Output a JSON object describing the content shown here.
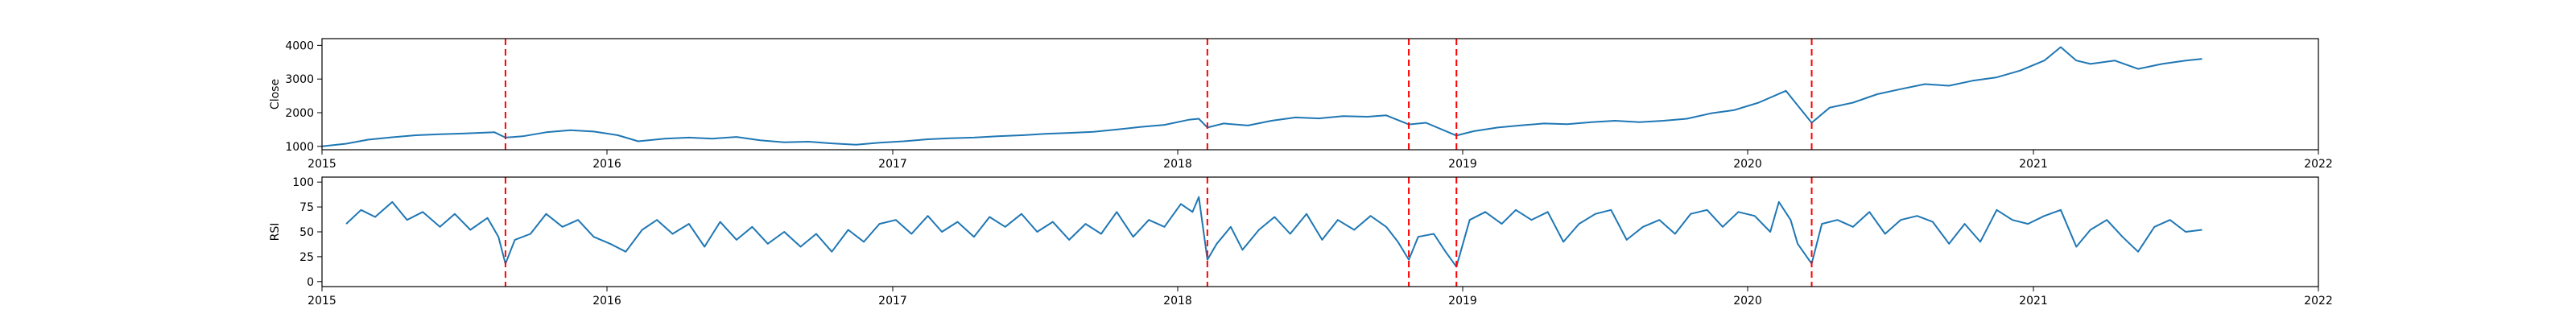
{
  "colors": {
    "series": "#1f77b4",
    "event": "#ff0000",
    "frame": "#000000"
  },
  "chart_data": [
    {
      "type": "line",
      "title": "",
      "xlabel": "",
      "ylabel": "Close",
      "xlim": [
        "2015-01-01",
        "2022-01-01"
      ],
      "ylim": [
        900,
        4200
      ],
      "x_ticks": [
        "2015",
        "2016",
        "2017",
        "2018",
        "2019",
        "2020",
        "2021",
        "2022"
      ],
      "y_ticks": [
        1000,
        2000,
        3000,
        4000
      ],
      "event_lines": [
        "2015-08-24",
        "2018-02-08",
        "2018-10-24",
        "2018-12-24",
        "2020-03-23"
      ],
      "series": [
        {
          "points": [
            [
              "2015-01-01",
              1000
            ],
            [
              "2015-02-01",
              1080
            ],
            [
              "2015-03-01",
              1200
            ],
            [
              "2015-04-01",
              1270
            ],
            [
              "2015-05-01",
              1330
            ],
            [
              "2015-06-01",
              1360
            ],
            [
              "2015-07-01",
              1380
            ],
            [
              "2015-08-10",
              1420
            ],
            [
              "2015-08-24",
              1260
            ],
            [
              "2015-09-15",
              1300
            ],
            [
              "2015-10-15",
              1420
            ],
            [
              "2015-11-15",
              1480
            ],
            [
              "2015-12-15",
              1440
            ],
            [
              "2016-01-15",
              1330
            ],
            [
              "2016-02-10",
              1150
            ],
            [
              "2016-03-15",
              1230
            ],
            [
              "2016-04-15",
              1260
            ],
            [
              "2016-05-15",
              1230
            ],
            [
              "2016-06-15",
              1280
            ],
            [
              "2016-07-15",
              1180
            ],
            [
              "2016-08-15",
              1120
            ],
            [
              "2016-09-15",
              1140
            ],
            [
              "2016-10-15",
              1090
            ],
            [
              "2016-11-15",
              1050
            ],
            [
              "2016-12-15",
              1110
            ],
            [
              "2017-01-15",
              1150
            ],
            [
              "2017-02-15",
              1210
            ],
            [
              "2017-03-15",
              1240
            ],
            [
              "2017-04-15",
              1260
            ],
            [
              "2017-05-15",
              1300
            ],
            [
              "2017-06-15",
              1330
            ],
            [
              "2017-07-15",
              1370
            ],
            [
              "2017-08-15",
              1400
            ],
            [
              "2017-09-15",
              1430
            ],
            [
              "2017-10-15",
              1500
            ],
            [
              "2017-11-15",
              1580
            ],
            [
              "2017-12-15",
              1640
            ],
            [
              "2018-01-15",
              1790
            ],
            [
              "2018-01-28",
              1820
            ],
            [
              "2018-02-08",
              1560
            ],
            [
              "2018-03-01",
              1680
            ],
            [
              "2018-04-01",
              1620
            ],
            [
              "2018-05-01",
              1760
            ],
            [
              "2018-06-01",
              1860
            ],
            [
              "2018-07-01",
              1830
            ],
            [
              "2018-08-01",
              1900
            ],
            [
              "2018-09-01",
              1880
            ],
            [
              "2018-09-25",
              1920
            ],
            [
              "2018-10-24",
              1650
            ],
            [
              "2018-11-15",
              1700
            ],
            [
              "2018-12-24",
              1320
            ],
            [
              "2019-01-15",
              1450
            ],
            [
              "2019-02-15",
              1560
            ],
            [
              "2019-03-15",
              1620
            ],
            [
              "2019-04-15",
              1680
            ],
            [
              "2019-05-15",
              1660
            ],
            [
              "2019-06-15",
              1720
            ],
            [
              "2019-07-15",
              1760
            ],
            [
              "2019-08-15",
              1720
            ],
            [
              "2019-09-15",
              1760
            ],
            [
              "2019-10-15",
              1820
            ],
            [
              "2019-11-15",
              1980
            ],
            [
              "2019-12-15",
              2080
            ],
            [
              "2020-01-15",
              2300
            ],
            [
              "2020-02-19",
              2650
            ],
            [
              "2020-03-23",
              1700
            ],
            [
              "2020-04-15",
              2150
            ],
            [
              "2020-05-15",
              2300
            ],
            [
              "2020-06-15",
              2550
            ],
            [
              "2020-07-15",
              2700
            ],
            [
              "2020-08-15",
              2850
            ],
            [
              "2020-09-15",
              2800
            ],
            [
              "2020-10-15",
              2950
            ],
            [
              "2020-11-15",
              3050
            ],
            [
              "2020-12-15",
              3250
            ],
            [
              "2021-01-15",
              3550
            ],
            [
              "2021-02-05",
              3950
            ],
            [
              "2021-02-25",
              3550
            ],
            [
              "2021-03-15",
              3450
            ],
            [
              "2021-04-15",
              3550
            ],
            [
              "2021-05-15",
              3300
            ],
            [
              "2021-06-15",
              3450
            ],
            [
              "2021-07-15",
              3550
            ],
            [
              "2021-08-05",
              3600
            ]
          ]
        }
      ]
    },
    {
      "type": "line",
      "title": "",
      "xlabel": "",
      "ylabel": "RSI",
      "xlim": [
        "2015-01-01",
        "2022-01-01"
      ],
      "ylim": [
        -5,
        105
      ],
      "x_ticks": [
        "2015",
        "2016",
        "2017",
        "2018",
        "2019",
        "2020",
        "2021",
        "2022"
      ],
      "y_ticks": [
        0,
        25,
        50,
        75,
        100
      ],
      "event_lines": [
        "2015-08-24",
        "2018-02-08",
        "2018-10-24",
        "2018-12-24",
        "2020-03-23"
      ],
      "series": [
        {
          "points": [
            [
              "2015-02-01",
              58
            ],
            [
              "2015-02-20",
              72
            ],
            [
              "2015-03-10",
              65
            ],
            [
              "2015-04-01",
              80
            ],
            [
              "2015-04-20",
              62
            ],
            [
              "2015-05-10",
              70
            ],
            [
              "2015-06-01",
              55
            ],
            [
              "2015-06-20",
              68
            ],
            [
              "2015-07-10",
              52
            ],
            [
              "2015-08-01",
              64
            ],
            [
              "2015-08-15",
              45
            ],
            [
              "2015-08-24",
              18
            ],
            [
              "2015-09-05",
              42
            ],
            [
              "2015-09-25",
              48
            ],
            [
              "2015-10-15",
              68
            ],
            [
              "2015-11-05",
              55
            ],
            [
              "2015-11-25",
              62
            ],
            [
              "2015-12-15",
              45
            ],
            [
              "2016-01-05",
              38
            ],
            [
              "2016-01-25",
              30
            ],
            [
              "2016-02-15",
              52
            ],
            [
              "2016-03-05",
              62
            ],
            [
              "2016-03-25",
              48
            ],
            [
              "2016-04-15",
              58
            ],
            [
              "2016-05-05",
              35
            ],
            [
              "2016-05-25",
              60
            ],
            [
              "2016-06-15",
              42
            ],
            [
              "2016-07-05",
              55
            ],
            [
              "2016-07-25",
              38
            ],
            [
              "2016-08-15",
              50
            ],
            [
              "2016-09-05",
              35
            ],
            [
              "2016-09-25",
              48
            ],
            [
              "2016-10-15",
              30
            ],
            [
              "2016-11-05",
              52
            ],
            [
              "2016-11-25",
              40
            ],
            [
              "2016-12-15",
              58
            ],
            [
              "2017-01-05",
              62
            ],
            [
              "2017-01-25",
              48
            ],
            [
              "2017-02-15",
              66
            ],
            [
              "2017-03-05",
              50
            ],
            [
              "2017-03-25",
              60
            ],
            [
              "2017-04-15",
              45
            ],
            [
              "2017-05-05",
              65
            ],
            [
              "2017-05-25",
              55
            ],
            [
              "2017-06-15",
              68
            ],
            [
              "2017-07-05",
              50
            ],
            [
              "2017-07-25",
              60
            ],
            [
              "2017-08-15",
              42
            ],
            [
              "2017-09-05",
              58
            ],
            [
              "2017-09-25",
              48
            ],
            [
              "2017-10-15",
              70
            ],
            [
              "2017-11-05",
              45
            ],
            [
              "2017-11-25",
              62
            ],
            [
              "2017-12-15",
              55
            ],
            [
              "2018-01-05",
              78
            ],
            [
              "2018-01-20",
              70
            ],
            [
              "2018-01-28",
              85
            ],
            [
              "2018-02-08",
              22
            ],
            [
              "2018-02-20",
              38
            ],
            [
              "2018-03-10",
              55
            ],
            [
              "2018-03-25",
              32
            ],
            [
              "2018-04-15",
              52
            ],
            [
              "2018-05-05",
              65
            ],
            [
              "2018-05-25",
              48
            ],
            [
              "2018-06-15",
              68
            ],
            [
              "2018-07-05",
              42
            ],
            [
              "2018-07-25",
              62
            ],
            [
              "2018-08-15",
              52
            ],
            [
              "2018-09-05",
              66
            ],
            [
              "2018-09-25",
              55
            ],
            [
              "2018-10-10",
              40
            ],
            [
              "2018-10-24",
              22
            ],
            [
              "2018-11-05",
              45
            ],
            [
              "2018-11-25",
              48
            ],
            [
              "2018-12-10",
              30
            ],
            [
              "2018-12-24",
              15
            ],
            [
              "2019-01-10",
              62
            ],
            [
              "2019-01-30",
              70
            ],
            [
              "2019-02-20",
              58
            ],
            [
              "2019-03-10",
              72
            ],
            [
              "2019-03-30",
              62
            ],
            [
              "2019-04-20",
              70
            ],
            [
              "2019-05-10",
              40
            ],
            [
              "2019-05-30",
              58
            ],
            [
              "2019-06-20",
              68
            ],
            [
              "2019-07-10",
              72
            ],
            [
              "2019-07-30",
              42
            ],
            [
              "2019-08-20",
              55
            ],
            [
              "2019-09-10",
              62
            ],
            [
              "2019-09-30",
              48
            ],
            [
              "2019-10-20",
              68
            ],
            [
              "2019-11-10",
              72
            ],
            [
              "2019-11-30",
              55
            ],
            [
              "2019-12-20",
              70
            ],
            [
              "2020-01-10",
              66
            ],
            [
              "2020-01-30",
              50
            ],
            [
              "2020-02-10",
              80
            ],
            [
              "2020-02-25",
              62
            ],
            [
              "2020-03-05",
              38
            ],
            [
              "2020-03-23",
              18
            ],
            [
              "2020-04-05",
              58
            ],
            [
              "2020-04-25",
              62
            ],
            [
              "2020-05-15",
              55
            ],
            [
              "2020-06-05",
              70
            ],
            [
              "2020-06-25",
              48
            ],
            [
              "2020-07-15",
              62
            ],
            [
              "2020-08-05",
              66
            ],
            [
              "2020-08-25",
              60
            ],
            [
              "2020-09-15",
              38
            ],
            [
              "2020-10-05",
              58
            ],
            [
              "2020-10-25",
              40
            ],
            [
              "2020-11-15",
              72
            ],
            [
              "2020-12-05",
              62
            ],
            [
              "2020-12-25",
              58
            ],
            [
              "2021-01-15",
              66
            ],
            [
              "2021-02-05",
              72
            ],
            [
              "2021-02-25",
              35
            ],
            [
              "2021-03-15",
              52
            ],
            [
              "2021-04-05",
              62
            ],
            [
              "2021-04-25",
              45
            ],
            [
              "2021-05-15",
              30
            ],
            [
              "2021-06-05",
              55
            ],
            [
              "2021-06-25",
              62
            ],
            [
              "2021-07-15",
              50
            ],
            [
              "2021-08-05",
              52
            ]
          ]
        }
      ]
    }
  ]
}
